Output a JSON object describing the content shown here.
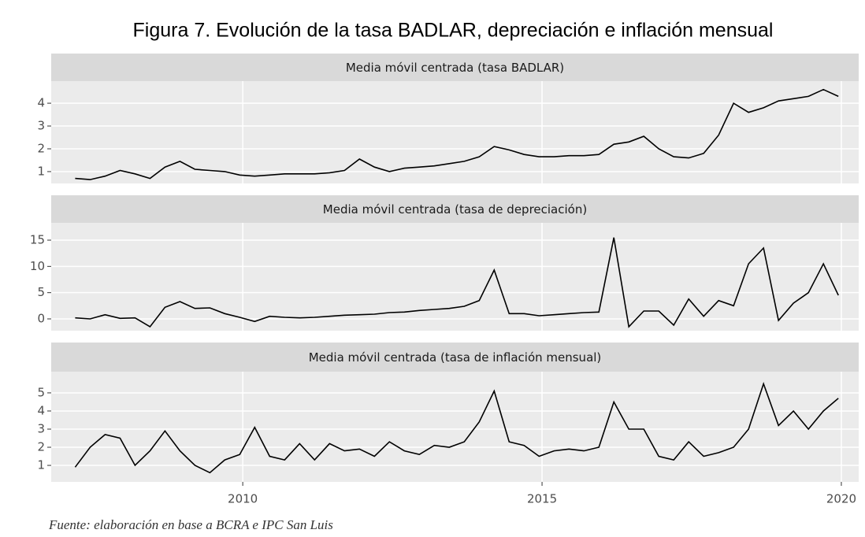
{
  "title": "Figura 7. Evolución de la tasa BADLAR, depreciación e inflación mensual",
  "source": "Fuente: elaboración en base a BCRA e IPC San Luis",
  "chart_data": [
    {
      "type": "line",
      "title": "Media móvil centrada (tasa BADLAR)",
      "color": "#000000",
      "grid": true,
      "x": [
        2007.2,
        2007.45,
        2007.7,
        2007.95,
        2008.2,
        2008.45,
        2008.7,
        2008.95,
        2009.2,
        2009.45,
        2009.7,
        2009.95,
        2010.2,
        2010.45,
        2010.7,
        2010.95,
        2011.2,
        2011.45,
        2011.7,
        2011.95,
        2012.2,
        2012.45,
        2012.7,
        2012.95,
        2013.2,
        2013.45,
        2013.7,
        2013.95,
        2014.2,
        2014.45,
        2014.7,
        2014.95,
        2015.2,
        2015.45,
        2015.7,
        2015.95,
        2016.2,
        2016.45,
        2016.7,
        2016.95,
        2017.2,
        2017.45,
        2017.7,
        2017.95,
        2018.2,
        2018.45,
        2018.7,
        2018.95,
        2019.2,
        2019.45,
        2019.7,
        2019.95
      ],
      "values": [
        0.7,
        0.65,
        0.8,
        1.05,
        0.9,
        0.7,
        1.2,
        1.45,
        1.1,
        1.05,
        1.0,
        0.85,
        0.8,
        0.85,
        0.9,
        0.9,
        0.9,
        0.95,
        1.05,
        1.55,
        1.2,
        1.0,
        1.15,
        1.2,
        1.25,
        1.35,
        1.45,
        1.65,
        2.1,
        1.95,
        1.75,
        1.65,
        1.65,
        1.7,
        1.7,
        1.75,
        2.2,
        2.3,
        2.55,
        2.0,
        1.65,
        1.6,
        1.8,
        2.6,
        4.0,
        3.6,
        3.8,
        4.1,
        4.2,
        4.3,
        4.6,
        4.3
      ],
      "xlim": [
        2006.8,
        2020.29
      ],
      "xticks": [
        2010,
        2015,
        2020
      ],
      "ylim": [
        0.48,
        4.97
      ],
      "yticks": [
        1,
        2,
        3,
        4
      ]
    },
    {
      "type": "line",
      "title": "Media móvil centrada (tasa de depreciación)",
      "color": "#000000",
      "grid": true,
      "x": [
        2007.2,
        2007.45,
        2007.7,
        2007.95,
        2008.2,
        2008.45,
        2008.7,
        2008.95,
        2009.2,
        2009.45,
        2009.7,
        2009.95,
        2010.2,
        2010.45,
        2010.7,
        2010.95,
        2011.2,
        2011.45,
        2011.7,
        2011.95,
        2012.2,
        2012.45,
        2012.7,
        2012.95,
        2013.2,
        2013.45,
        2013.7,
        2013.95,
        2014.2,
        2014.45,
        2014.7,
        2014.95,
        2015.2,
        2015.45,
        2015.7,
        2015.95,
        2016.2,
        2016.45,
        2016.7,
        2016.95,
        2017.2,
        2017.45,
        2017.7,
        2017.95,
        2018.2,
        2018.45,
        2018.7,
        2018.95,
        2019.2,
        2019.45,
        2019.7,
        2019.95
      ],
      "values": [
        0.2,
        0.0,
        0.8,
        0.1,
        0.2,
        -1.5,
        2.2,
        3.3,
        2.0,
        2.1,
        1.0,
        0.3,
        -0.5,
        0.5,
        0.3,
        0.2,
        0.3,
        0.5,
        0.7,
        0.8,
        0.9,
        1.2,
        1.3,
        1.6,
        1.8,
        2.0,
        2.4,
        3.5,
        9.3,
        1.0,
        1.0,
        0.6,
        0.8,
        1.0,
        1.2,
        1.3,
        15.5,
        -1.5,
        1.5,
        1.5,
        -1.2,
        3.8,
        0.5,
        3.5,
        2.5,
        10.5,
        13.5,
        -0.3,
        3.0,
        5.0,
        10.5,
        4.5
      ],
      "xlim": [
        2006.8,
        2020.29
      ],
      "xticks": [
        2010,
        2015,
        2020
      ],
      "ylim": [
        -2.25,
        18.3
      ],
      "yticks": [
        0,
        5,
        10,
        15
      ]
    },
    {
      "type": "line",
      "title": "Media móvil centrada (tasa de inflación mensual)",
      "color": "#000000",
      "grid": true,
      "x": [
        2007.2,
        2007.45,
        2007.7,
        2007.95,
        2008.2,
        2008.45,
        2008.7,
        2008.95,
        2009.2,
        2009.45,
        2009.7,
        2009.95,
        2010.2,
        2010.45,
        2010.7,
        2010.95,
        2011.2,
        2011.45,
        2011.7,
        2011.95,
        2012.2,
        2012.45,
        2012.7,
        2012.95,
        2013.2,
        2013.45,
        2013.7,
        2013.95,
        2014.2,
        2014.45,
        2014.7,
        2014.95,
        2015.2,
        2015.45,
        2015.7,
        2015.95,
        2016.2,
        2016.45,
        2016.7,
        2016.95,
        2017.2,
        2017.45,
        2017.7,
        2017.95,
        2018.2,
        2018.45,
        2018.7,
        2018.95,
        2019.2,
        2019.45,
        2019.7,
        2019.95
      ],
      "values": [
        0.9,
        2.0,
        2.7,
        2.5,
        1.0,
        1.8,
        2.9,
        1.8,
        1.0,
        0.6,
        1.3,
        1.6,
        3.1,
        1.5,
        1.3,
        2.2,
        1.3,
        2.2,
        1.8,
        1.9,
        1.5,
        2.3,
        1.8,
        1.6,
        2.1,
        2.0,
        2.3,
        3.4,
        5.1,
        2.3,
        2.1,
        1.5,
        1.8,
        1.9,
        1.8,
        2.0,
        4.5,
        3.0,
        3.0,
        1.5,
        1.3,
        2.3,
        1.5,
        1.7,
        2.0,
        3.0,
        5.5,
        3.2,
        4.0,
        3.0,
        4.0,
        4.7
      ],
      "xlim": [
        2006.8,
        2020.29
      ],
      "xticks": [
        2010,
        2015,
        2020
      ],
      "ylim": [
        0.09,
        6.17
      ],
      "yticks": [
        1,
        2,
        3,
        4,
        5
      ]
    }
  ]
}
